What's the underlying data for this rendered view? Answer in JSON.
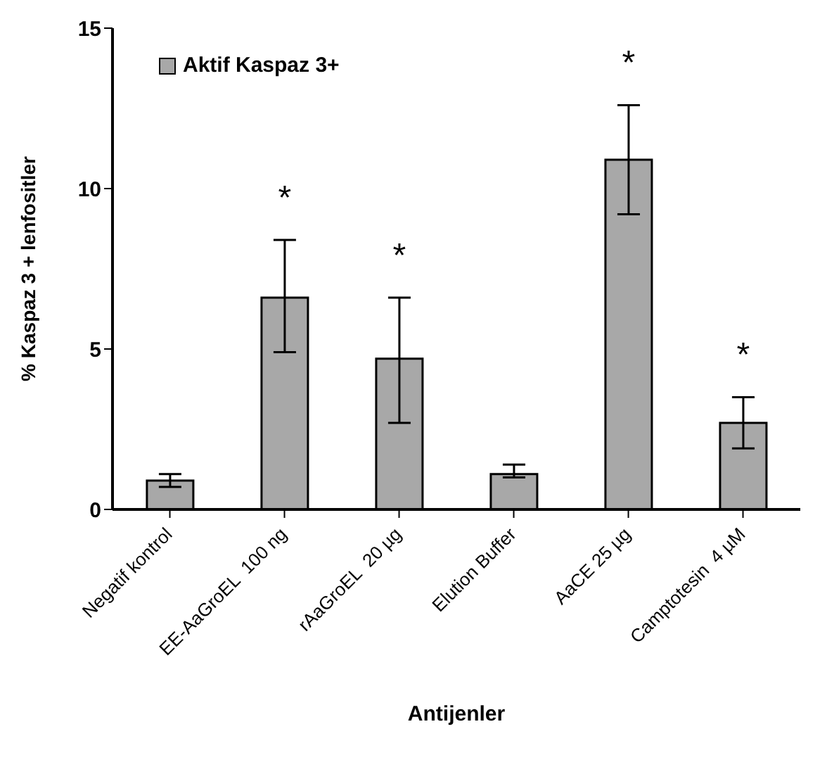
{
  "chart_data": {
    "type": "bar",
    "xlabel": "Antijenler",
    "ylabel": "%   Kaspaz 3 + lenfositler",
    "categories": [
      "Negatif kontrol",
      "EE-AaGroEL  100 ng",
      "rAaGroEL  20 µg",
      "Elution Buffer",
      "AaCE 25 µg",
      "Camptotesin  4 µM"
    ],
    "series": [
      {
        "name": "Aktif Kaspaz 3+",
        "color": "#a8a8a8",
        "values": [
          0.9,
          6.6,
          4.7,
          1.1,
          10.9,
          2.7
        ],
        "errors": [
          [
            0.7,
            1.1
          ],
          [
            4.9,
            8.4
          ],
          [
            2.7,
            6.6
          ],
          [
            1.0,
            1.4
          ],
          [
            9.2,
            12.6
          ],
          [
            1.9,
            3.5
          ]
        ],
        "value_labels": [
          null,
          "*",
          "*",
          null,
          "*",
          "*"
        ]
      }
    ],
    "ylim": [
      0,
      15
    ],
    "yticks": [
      0,
      5,
      10,
      15
    ],
    "grid": false,
    "legend": "top left"
  }
}
